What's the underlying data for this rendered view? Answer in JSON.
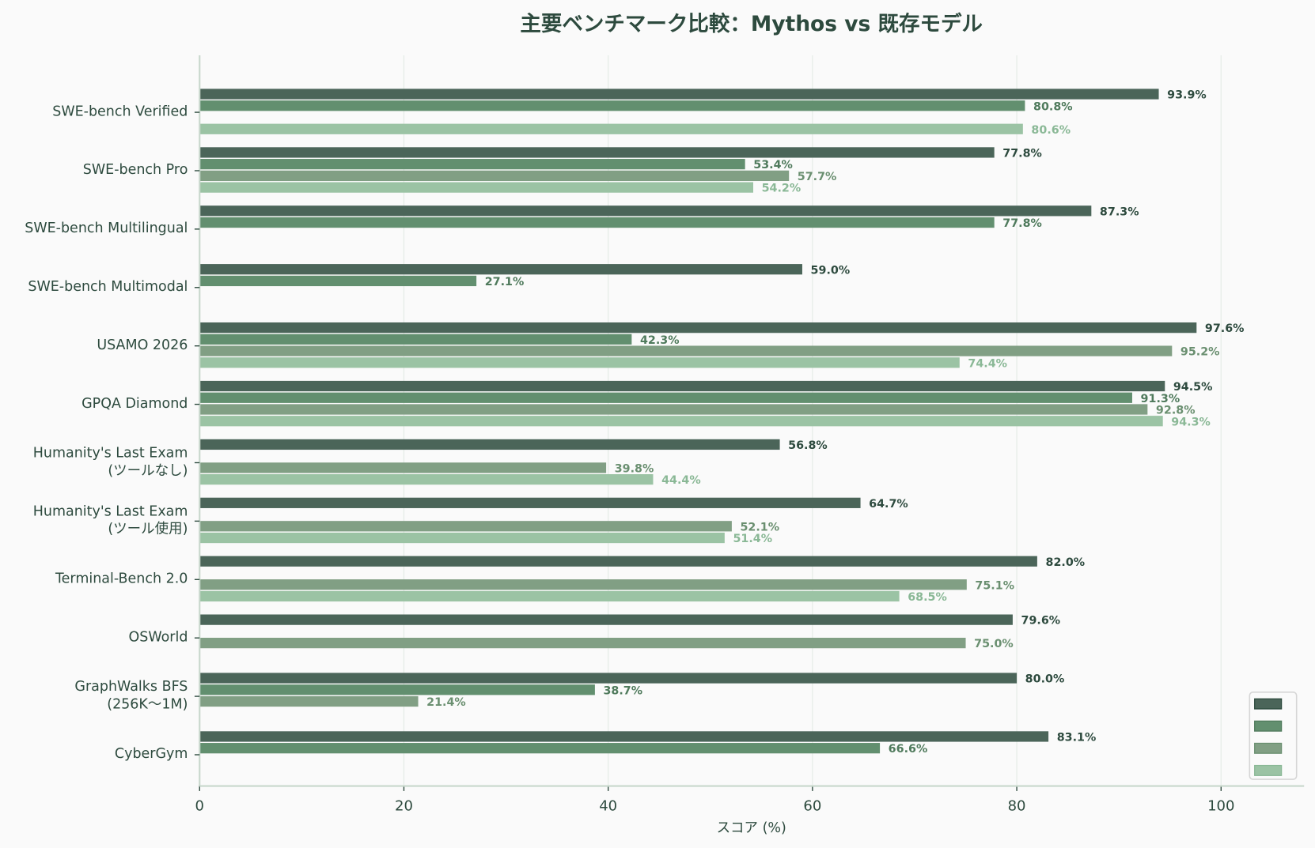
{
  "chart_data": {
    "type": "bar",
    "orientation": "horizontal",
    "title": "主要ベンチマーク比較：Mythos vs 既存モデル",
    "xlabel": "スコア (%)",
    "ylabel": "",
    "xlim": [
      0,
      108
    ],
    "xticks": [
      0,
      20,
      40,
      60,
      80,
      100
    ],
    "grid": true,
    "legend_position": "lower right",
    "legend_labels_visible": false,
    "categories": [
      "SWE-bench Verified",
      "SWE-bench Pro",
      "SWE-bench Multilingual",
      "SWE-bench Multimodal",
      "USAMO 2026",
      "GPQA Diamond",
      "Humanity's Last Exam\n(ツールなし)",
      "Humanity's Last Exam\n(ツール使用)",
      "Terminal-Bench 2.0",
      "OSWorld",
      "GraphWalks BFS\n(256K〜1M)",
      "CyberGym"
    ],
    "series": [
      {
        "name": "series-1",
        "color": "#4b6559",
        "label_color": "#2d4a3e",
        "values": [
          93.9,
          77.8,
          87.3,
          59.0,
          97.6,
          94.5,
          56.8,
          64.7,
          82.0,
          79.6,
          80.0,
          83.1
        ]
      },
      {
        "name": "series-2",
        "color": "#628f6f",
        "label_color": "#4f7a5c",
        "values": [
          80.8,
          53.4,
          77.8,
          27.1,
          42.3,
          91.3,
          null,
          null,
          null,
          null,
          38.7,
          66.6
        ]
      },
      {
        "name": "series-3",
        "color": "#819f84",
        "label_color": "#6a8f70",
        "values": [
          null,
          57.7,
          null,
          null,
          95.2,
          92.8,
          39.8,
          52.1,
          75.1,
          75.0,
          21.4,
          null
        ]
      },
      {
        "name": "series-4",
        "color": "#9bc3a4",
        "label_color": "#8ab896",
        "values": [
          80.6,
          54.2,
          null,
          null,
          74.4,
          94.3,
          44.4,
          51.4,
          68.5,
          null,
          null,
          null
        ]
      }
    ]
  },
  "ui": {
    "title": "主要ベンチマーク比較：Mythos vs 既存モデル",
    "xlabel": "スコア (%)",
    "background": "#fafafa"
  }
}
